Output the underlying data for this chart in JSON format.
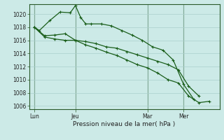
{
  "background_color": "#cceae7",
  "grid_color": "#aacfcc",
  "line_color": "#1a5e1a",
  "xlabel": "Pression niveau de la mer( hPa )",
  "ylim": [
    1005.5,
    1021.5
  ],
  "yticks": [
    1006,
    1008,
    1010,
    1012,
    1014,
    1016,
    1018,
    1020
  ],
  "xtick_labels": [
    "Lun",
    "Jeu",
    "Mar",
    "Mer"
  ],
  "xtick_positions": [
    0,
    8,
    22,
    29
  ],
  "xlim": [
    -1,
    36
  ],
  "vlines": [
    0,
    8,
    22,
    29
  ],
  "line1_x": [
    0,
    1,
    3,
    5,
    7,
    8,
    9,
    10,
    11,
    13,
    15,
    17,
    19,
    21,
    23,
    25,
    27,
    29,
    31
  ],
  "line1_y": [
    1018,
    1017.5,
    1019,
    1020.3,
    1020.2,
    1021.3,
    1019.5,
    1018.5,
    1018.5,
    1018.5,
    1018.2,
    1017.5,
    1016.8,
    1016,
    1015,
    1014.5,
    1013,
    1009.3,
    1007
  ],
  "line2_x": [
    0,
    2,
    4,
    6,
    8,
    10,
    12,
    14,
    16,
    18,
    20,
    22,
    24,
    26,
    28,
    30,
    32
  ],
  "line2_y": [
    1018,
    1016.7,
    1016.8,
    1017,
    1016,
    1015.8,
    1015.5,
    1015,
    1014.8,
    1014.3,
    1013.8,
    1013.3,
    1012.8,
    1012.3,
    1011.5,
    1009,
    1007.5
  ],
  "line3_x": [
    0,
    2,
    4,
    6,
    8,
    10,
    12,
    14,
    16,
    18,
    20,
    22,
    24,
    26,
    28,
    30,
    32,
    34
  ],
  "line3_y": [
    1018,
    1016.5,
    1016.2,
    1016,
    1016,
    1015.3,
    1014.8,
    1014.2,
    1013.7,
    1013.0,
    1012.3,
    1011.8,
    1011.0,
    1010.0,
    1009.5,
    1007.5,
    1006.5,
    1006.7
  ]
}
